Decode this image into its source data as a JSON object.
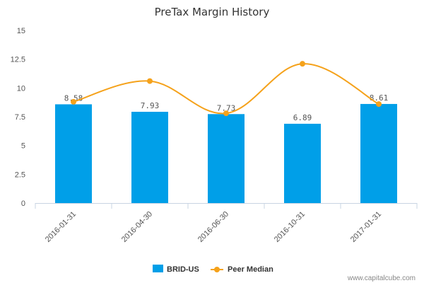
{
  "chart_data": {
    "type": "bar",
    "title": "PreTax Margin History",
    "categories": [
      "2016-01-31",
      "2016-04-30",
      "2016-06-30",
      "2016-10-31",
      "2017-01-31"
    ],
    "series": [
      {
        "name": "BRID-US",
        "type": "bar",
        "values": [
          8.58,
          7.93,
          7.73,
          6.89,
          8.61
        ],
        "value_labels": [
          "8.58",
          "7.93",
          "7.73",
          "6.89",
          "8.61"
        ],
        "color": "#009fe8"
      },
      {
        "name": "Peer Median",
        "type": "line",
        "values": [
          8.8,
          10.6,
          7.8,
          12.1,
          8.6
        ],
        "color": "#f5a21b"
      }
    ],
    "ylim": [
      0,
      15
    ],
    "yticks": [
      "0",
      "2.5",
      "5",
      "7.5",
      "10",
      "12.5",
      "15"
    ],
    "ytick_values": [
      0,
      2.5,
      5,
      7.5,
      10,
      12.5,
      15
    ],
    "grid": false,
    "legend": "bottom-center"
  },
  "watermark": "www.capitalcube.com"
}
